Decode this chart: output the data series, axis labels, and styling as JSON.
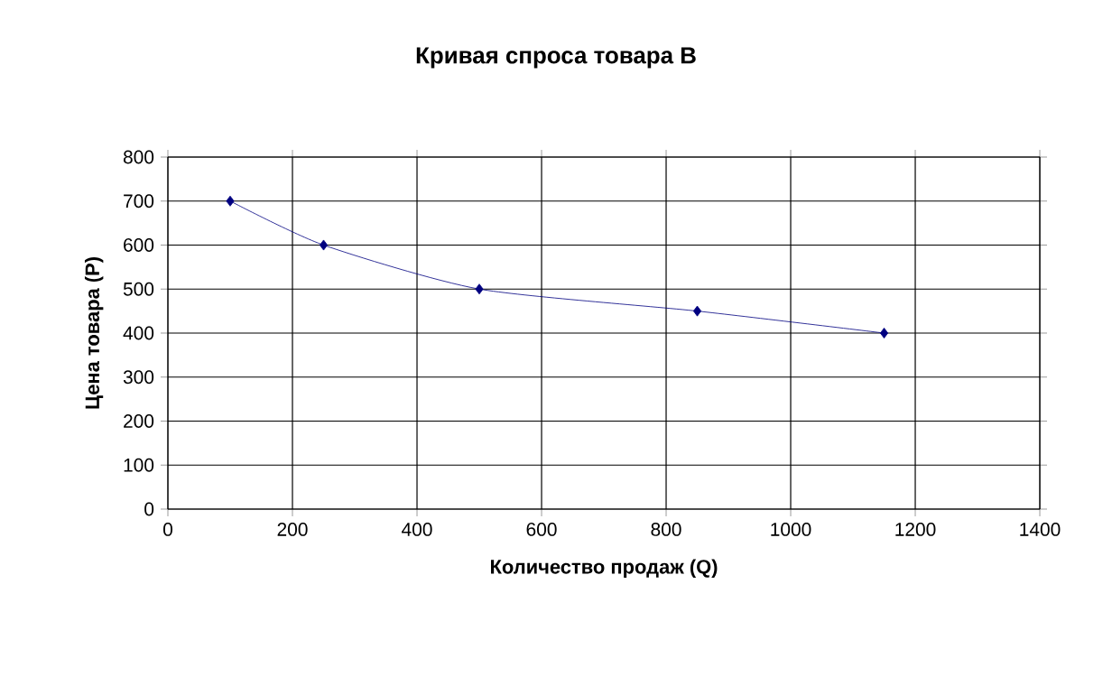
{
  "chart_data": {
    "type": "line",
    "title": "Кривая спроса товара В",
    "xlabel": "Количество продаж (Q)",
    "ylabel": "Цена товара (P)",
    "x": [
      100,
      250,
      500,
      850,
      1150
    ],
    "series": [
      {
        "color": "#000080",
        "values": [
          700,
          600,
          500,
          450,
          400
        ]
      }
    ],
    "xlim": [
      0,
      1400
    ],
    "xticks": [
      0,
      200,
      400,
      600,
      800,
      1000,
      1200,
      1400
    ],
    "ylim": [
      0,
      800
    ],
    "yticks": [
      0,
      100,
      200,
      300,
      400,
      500,
      600,
      700,
      800
    ],
    "grid": true,
    "marker": "diamond",
    "line_style": "solid"
  }
}
